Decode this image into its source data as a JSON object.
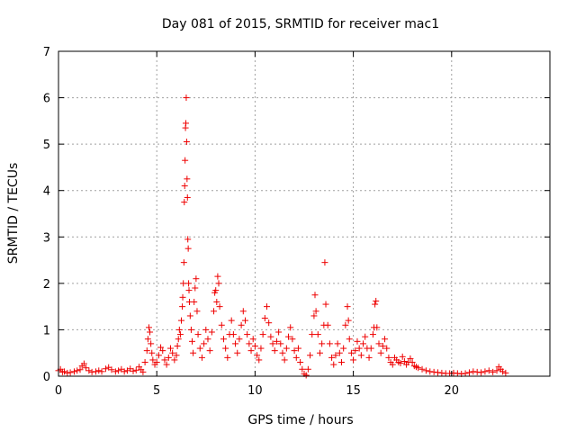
{
  "chart_data": {
    "type": "scatter",
    "title": "Day 081 of 2015, SRMTID for receiver mac1",
    "xlabel": "GPS time / hours",
    "ylabel": "SRMTID / TECUs",
    "xlim": [
      0,
      25
    ],
    "ylim": [
      0,
      7
    ],
    "xticks": [
      "0",
      "5",
      "10",
      "15",
      "20"
    ],
    "yticks": [
      "0",
      "1",
      "2",
      "3",
      "4",
      "5",
      "6",
      "7"
    ],
    "grid": true,
    "marker": "+",
    "color": "#ee0000",
    "series": [
      {
        "points": [
          [
            0.0,
            0.12
          ],
          [
            0.1,
            0.15
          ],
          [
            0.2,
            0.09
          ],
          [
            0.3,
            0.1
          ],
          [
            0.45,
            0.07
          ],
          [
            0.6,
            0.08
          ],
          [
            0.8,
            0.1
          ],
          [
            0.95,
            0.12
          ],
          [
            1.1,
            0.14
          ],
          [
            1.2,
            0.22
          ],
          [
            1.3,
            0.27
          ],
          [
            1.4,
            0.18
          ],
          [
            1.55,
            0.12
          ],
          [
            1.7,
            0.09
          ],
          [
            1.9,
            0.1
          ],
          [
            2.05,
            0.12
          ],
          [
            2.2,
            0.1
          ],
          [
            2.4,
            0.16
          ],
          [
            2.55,
            0.19
          ],
          [
            2.7,
            0.14
          ],
          [
            2.9,
            0.1
          ],
          [
            3.05,
            0.12
          ],
          [
            3.2,
            0.15
          ],
          [
            3.35,
            0.1
          ],
          [
            3.5,
            0.12
          ],
          [
            3.65,
            0.16
          ],
          [
            3.8,
            0.11
          ],
          [
            3.95,
            0.13
          ],
          [
            4.1,
            0.2
          ],
          [
            4.2,
            0.14
          ],
          [
            4.3,
            0.09
          ],
          [
            4.4,
            0.3
          ],
          [
            4.5,
            0.55
          ],
          [
            4.55,
            0.8
          ],
          [
            4.6,
            1.05
          ],
          [
            4.65,
            0.95
          ],
          [
            4.7,
            0.7
          ],
          [
            4.75,
            0.5
          ],
          [
            4.8,
            0.35
          ],
          [
            4.9,
            0.25
          ],
          [
            5.0,
            0.3
          ],
          [
            5.1,
            0.45
          ],
          [
            5.2,
            0.62
          ],
          [
            5.3,
            0.55
          ],
          [
            5.4,
            0.35
          ],
          [
            5.5,
            0.25
          ],
          [
            5.6,
            0.4
          ],
          [
            5.7,
            0.6
          ],
          [
            5.8,
            0.5
          ],
          [
            5.9,
            0.35
          ],
          [
            6.0,
            0.45
          ],
          [
            6.05,
            0.65
          ],
          [
            6.1,
            0.8
          ],
          [
            6.15,
            1.0
          ],
          [
            6.2,
            0.9
          ],
          [
            6.25,
            1.2
          ],
          [
            6.3,
            1.5
          ],
          [
            6.32,
            1.7
          ],
          [
            6.35,
            2.0
          ],
          [
            6.38,
            2.45
          ],
          [
            6.4,
            3.75
          ],
          [
            6.42,
            4.1
          ],
          [
            6.44,
            4.65
          ],
          [
            6.46,
            5.35
          ],
          [
            6.48,
            5.45
          ],
          [
            6.5,
            6.0
          ],
          [
            6.52,
            5.05
          ],
          [
            6.54,
            4.25
          ],
          [
            6.56,
            3.85
          ],
          [
            6.58,
            2.95
          ],
          [
            6.6,
            2.75
          ],
          [
            6.62,
            2.0
          ],
          [
            6.64,
            1.85
          ],
          [
            6.66,
            1.6
          ],
          [
            6.7,
            1.3
          ],
          [
            6.75,
            1.0
          ],
          [
            6.8,
            0.75
          ],
          [
            6.85,
            0.5
          ],
          [
            6.9,
            1.6
          ],
          [
            6.95,
            1.9
          ],
          [
            7.0,
            2.1
          ],
          [
            7.05,
            1.4
          ],
          [
            7.1,
            0.9
          ],
          [
            7.2,
            0.6
          ],
          [
            7.3,
            0.4
          ],
          [
            7.4,
            0.7
          ],
          [
            7.5,
            1.0
          ],
          [
            7.6,
            0.8
          ],
          [
            7.7,
            0.55
          ],
          [
            7.8,
            0.95
          ],
          [
            7.9,
            1.4
          ],
          [
            7.95,
            1.8
          ],
          [
            8.0,
            1.85
          ],
          [
            8.05,
            1.6
          ],
          [
            8.1,
            2.15
          ],
          [
            8.15,
            2.0
          ],
          [
            8.2,
            1.5
          ],
          [
            8.3,
            1.1
          ],
          [
            8.4,
            0.8
          ],
          [
            8.5,
            0.6
          ],
          [
            8.6,
            0.4
          ],
          [
            8.7,
            0.9
          ],
          [
            8.8,
            1.2
          ],
          [
            8.9,
            0.9
          ],
          [
            9.0,
            0.7
          ],
          [
            9.1,
            0.5
          ],
          [
            9.2,
            0.8
          ],
          [
            9.3,
            1.1
          ],
          [
            9.4,
            1.4
          ],
          [
            9.5,
            1.2
          ],
          [
            9.6,
            0.9
          ],
          [
            9.7,
            0.7
          ],
          [
            9.8,
            0.55
          ],
          [
            9.9,
            0.8
          ],
          [
            10.0,
            0.65
          ],
          [
            10.1,
            0.45
          ],
          [
            10.2,
            0.35
          ],
          [
            10.3,
            0.6
          ],
          [
            10.4,
            0.9
          ],
          [
            10.5,
            1.25
          ],
          [
            10.6,
            1.5
          ],
          [
            10.7,
            1.15
          ],
          [
            10.8,
            0.85
          ],
          [
            10.9,
            0.7
          ],
          [
            11.0,
            0.55
          ],
          [
            11.1,
            0.75
          ],
          [
            11.2,
            0.95
          ],
          [
            11.3,
            0.7
          ],
          [
            11.4,
            0.5
          ],
          [
            11.5,
            0.35
          ],
          [
            11.6,
            0.6
          ],
          [
            11.7,
            0.85
          ],
          [
            11.8,
            1.05
          ],
          [
            11.9,
            0.8
          ],
          [
            12.0,
            0.55
          ],
          [
            12.1,
            0.4
          ],
          [
            12.2,
            0.6
          ],
          [
            12.3,
            0.3
          ],
          [
            12.4,
            0.15
          ],
          [
            12.5,
            0.05
          ],
          [
            12.6,
            0.02
          ],
          [
            12.7,
            0.15
          ],
          [
            12.8,
            0.45
          ],
          [
            12.9,
            0.9
          ],
          [
            13.0,
            1.3
          ],
          [
            13.05,
            1.75
          ],
          [
            13.1,
            1.4
          ],
          [
            13.2,
            0.9
          ],
          [
            13.3,
            0.5
          ],
          [
            13.4,
            0.7
          ],
          [
            13.5,
            1.1
          ],
          [
            13.55,
            2.45
          ],
          [
            13.6,
            1.55
          ],
          [
            13.7,
            1.1
          ],
          [
            13.8,
            0.7
          ],
          [
            13.9,
            0.4
          ],
          [
            14.0,
            0.25
          ],
          [
            14.1,
            0.45
          ],
          [
            14.2,
            0.7
          ],
          [
            14.3,
            0.5
          ],
          [
            14.4,
            0.3
          ],
          [
            14.5,
            0.6
          ],
          [
            14.6,
            1.1
          ],
          [
            14.7,
            1.5
          ],
          [
            14.75,
            1.2
          ],
          [
            14.8,
            0.8
          ],
          [
            14.9,
            0.5
          ],
          [
            15.0,
            0.35
          ],
          [
            15.1,
            0.55
          ],
          [
            15.2,
            0.75
          ],
          [
            15.3,
            0.6
          ],
          [
            15.4,
            0.45
          ],
          [
            15.5,
            0.7
          ],
          [
            15.6,
            0.85
          ],
          [
            15.7,
            0.6
          ],
          [
            15.8,
            0.4
          ],
          [
            15.9,
            0.6
          ],
          [
            16.0,
            0.9
          ],
          [
            16.05,
            1.05
          ],
          [
            16.1,
            1.55
          ],
          [
            16.15,
            1.62
          ],
          [
            16.2,
            1.05
          ],
          [
            16.3,
            0.7
          ],
          [
            16.4,
            0.5
          ],
          [
            16.5,
            0.65
          ],
          [
            16.6,
            0.8
          ],
          [
            16.7,
            0.6
          ],
          [
            16.8,
            0.4
          ],
          [
            16.9,
            0.3
          ],
          [
            17.0,
            0.25
          ],
          [
            17.1,
            0.4
          ],
          [
            17.2,
            0.35
          ],
          [
            17.3,
            0.3
          ],
          [
            17.4,
            0.28
          ],
          [
            17.5,
            0.42
          ],
          [
            17.6,
            0.32
          ],
          [
            17.7,
            0.25
          ],
          [
            17.8,
            0.3
          ],
          [
            17.9,
            0.38
          ],
          [
            18.0,
            0.3
          ],
          [
            18.1,
            0.22
          ],
          [
            18.2,
            0.2
          ],
          [
            18.3,
            0.18
          ],
          [
            18.5,
            0.15
          ],
          [
            18.7,
            0.12
          ],
          [
            18.9,
            0.1
          ],
          [
            19.1,
            0.09
          ],
          [
            19.3,
            0.08
          ],
          [
            19.5,
            0.07
          ],
          [
            19.7,
            0.06
          ],
          [
            19.9,
            0.06
          ],
          [
            20.1,
            0.07
          ],
          [
            20.3,
            0.06
          ],
          [
            20.5,
            0.05
          ],
          [
            20.7,
            0.06
          ],
          [
            20.9,
            0.08
          ],
          [
            21.1,
            0.1
          ],
          [
            21.3,
            0.09
          ],
          [
            21.5,
            0.08
          ],
          [
            21.7,
            0.1
          ],
          [
            21.9,
            0.12
          ],
          [
            22.1,
            0.09
          ],
          [
            22.3,
            0.12
          ],
          [
            22.4,
            0.2
          ],
          [
            22.5,
            0.15
          ],
          [
            22.6,
            0.1
          ],
          [
            22.75,
            0.07
          ]
        ]
      }
    ]
  }
}
